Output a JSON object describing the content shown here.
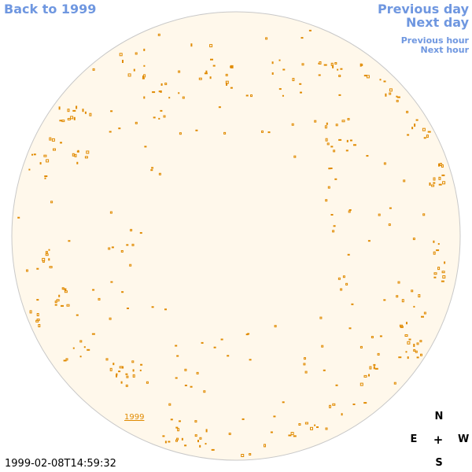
{
  "nav": {
    "back_label": "Back to 1999",
    "prev_day_label": "Previous day",
    "next_day_label": "Next day",
    "prev_hour_label": "Previous hour",
    "next_hour_label": "Next hour"
  },
  "image": {
    "timestamp": "1999-02-08T14:59:32",
    "year_label": "1999"
  },
  "compass": {
    "north": "N",
    "east": "E",
    "center": "+",
    "west": "W",
    "south": "S"
  },
  "colors": {
    "link": "#6f97e0",
    "disk_fill": "#fff8eb",
    "disk_stroke": "#c8c8c8",
    "feature": "#e08a00"
  }
}
